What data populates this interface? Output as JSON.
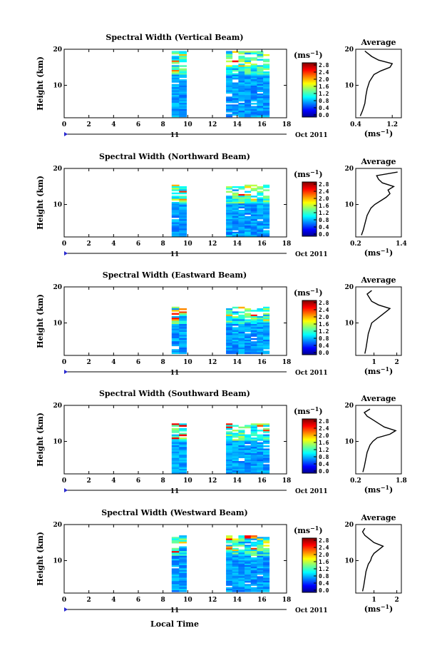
{
  "figure": {
    "xlabel": "Local Time",
    "colorbar_unit": "(ms",
    "colorbar_unit_sup": "−1",
    "date_day": "11",
    "date_label": "Oct 2011",
    "avg_title": "Average",
    "avg_xlabel": "(ms",
    "avg_xlabel_sup": "−1"
  },
  "chart_data": [
    {
      "type": "heatmap",
      "title": "Spectral Width (Vertical Beam)",
      "ylabel": "Height (km)",
      "xlim": [
        0,
        18
      ],
      "ylim": [
        1,
        20
      ],
      "xticks": [
        0,
        2,
        4,
        6,
        8,
        10,
        12,
        14,
        16,
        18
      ],
      "yticks": [
        10,
        20
      ],
      "data_intervals": [
        [
          8.7,
          9.9
        ],
        [
          13.1,
          16.6
        ]
      ],
      "data_height_range": [
        1.5,
        19.5
      ],
      "colorbar": {
        "ticks": [
          0.0,
          0.4,
          0.8,
          1.2,
          1.6,
          2.0,
          2.4,
          2.8
        ]
      },
      "average_profile": {
        "xlim": [
          0.4,
          1.4
        ],
        "xticks": [
          0.4,
          1.2
        ],
        "height": [
          1.5,
          3,
          5,
          7,
          9,
          11,
          12,
          13,
          14,
          15,
          16,
          17,
          18,
          19,
          19.5
        ],
        "value": [
          0.5,
          0.55,
          0.6,
          0.62,
          0.65,
          0.7,
          0.75,
          0.8,
          0.95,
          1.15,
          1.2,
          0.9,
          0.75,
          0.65,
          0.6
        ]
      }
    },
    {
      "type": "heatmap",
      "title": "Spectral Width (Northward Beam)",
      "ylabel": "Height (km)",
      "xlim": [
        0,
        18
      ],
      "ylim": [
        1,
        20
      ],
      "xticks": [
        0,
        2,
        4,
        6,
        8,
        10,
        12,
        14,
        16,
        18
      ],
      "yticks": [
        10,
        20
      ],
      "data_intervals": [
        [
          8.7,
          9.9
        ],
        [
          13.1,
          16.6
        ]
      ],
      "data_height_range": [
        1.5,
        15.5
      ],
      "colorbar": {
        "ticks": [
          0.0,
          0.4,
          0.8,
          1.2,
          1.6,
          2.0,
          2.4,
          2.8
        ]
      },
      "average_profile": {
        "xlim": [
          0.2,
          1.4
        ],
        "xticks": [
          0.2,
          1.4
        ],
        "height": [
          1.5,
          3,
          5,
          7,
          9,
          10,
          11,
          12,
          13,
          14,
          15,
          16,
          17,
          18,
          19
        ],
        "value": [
          0.35,
          0.4,
          0.45,
          0.5,
          0.6,
          0.7,
          0.85,
          1.0,
          1.1,
          1.05,
          1.2,
          0.9,
          0.8,
          0.75,
          1.3
        ]
      }
    },
    {
      "type": "heatmap",
      "title": "Spectral Width (Eastward Beam)",
      "ylabel": "Height (km)",
      "xlim": [
        0,
        18
      ],
      "ylim": [
        1,
        20
      ],
      "xticks": [
        0,
        2,
        4,
        6,
        8,
        10,
        12,
        14,
        16,
        18
      ],
      "yticks": [
        10,
        20
      ],
      "data_intervals": [
        [
          8.7,
          9.9
        ],
        [
          13.1,
          16.6
        ]
      ],
      "data_height_range": [
        1.5,
        14.5
      ],
      "colorbar": {
        "ticks": [
          0.0,
          0.4,
          0.8,
          1.2,
          1.6,
          2.0,
          2.4,
          2.8
        ]
      },
      "average_profile": {
        "xlim": [
          0.2,
          2.2
        ],
        "xticks": [
          1,
          2
        ],
        "height": [
          1.5,
          3,
          5,
          7,
          9,
          10,
          11,
          12,
          13,
          14,
          15,
          16,
          17,
          18,
          19
        ],
        "value": [
          0.6,
          0.65,
          0.7,
          0.75,
          0.85,
          0.9,
          1.1,
          1.3,
          1.5,
          1.7,
          1.2,
          0.9,
          0.8,
          0.7,
          0.9
        ]
      }
    },
    {
      "type": "heatmap",
      "title": "Spectral Width (Southward Beam)",
      "ylabel": "Height (km)",
      "xlim": [
        0,
        18
      ],
      "ylim": [
        1,
        20
      ],
      "xticks": [
        0,
        2,
        4,
        6,
        8,
        10,
        12,
        14,
        16,
        18
      ],
      "yticks": [
        10,
        20
      ],
      "data_intervals": [
        [
          8.7,
          9.9
        ],
        [
          13.1,
          16.6
        ]
      ],
      "data_height_range": [
        1.5,
        15.0
      ],
      "colorbar": {
        "ticks": [
          0.0,
          0.4,
          0.8,
          1.2,
          1.6,
          2.0,
          2.4,
          2.8
        ]
      },
      "average_profile": {
        "xlim": [
          0.2,
          1.8
        ],
        "xticks": [
          0.2,
          1.8
        ],
        "height": [
          1.5,
          3,
          5,
          7,
          9,
          10,
          11,
          12,
          13,
          14,
          15,
          16,
          17,
          18,
          19
        ],
        "value": [
          0.45,
          0.5,
          0.55,
          0.6,
          0.7,
          0.8,
          0.95,
          1.4,
          1.6,
          1.2,
          1.0,
          0.8,
          0.6,
          0.5,
          0.7
        ]
      }
    },
    {
      "type": "heatmap",
      "title": "Spectral Width (Westward Beam)",
      "ylabel": "Height (km)",
      "xlim": [
        0,
        18
      ],
      "ylim": [
        1,
        20
      ],
      "xticks": [
        0,
        2,
        4,
        6,
        8,
        10,
        12,
        14,
        16,
        18
      ],
      "yticks": [
        10,
        20
      ],
      "data_intervals": [
        [
          8.7,
          9.9
        ],
        [
          13.1,
          16.6
        ]
      ],
      "data_height_range": [
        1.5,
        17.0
      ],
      "colorbar": {
        "ticks": [
          0.0,
          0.4,
          0.8,
          1.2,
          1.6,
          2.0,
          2.4,
          2.8
        ]
      },
      "average_profile": {
        "xlim": [
          0.2,
          2.2
        ],
        "xticks": [
          1,
          2
        ],
        "height": [
          1.5,
          3,
          5,
          7,
          9,
          10,
          11,
          12,
          13,
          14,
          15,
          16,
          17,
          18,
          19
        ],
        "value": [
          0.5,
          0.55,
          0.6,
          0.65,
          0.75,
          0.85,
          0.9,
          1.0,
          1.2,
          1.4,
          1.0,
          0.8,
          0.6,
          0.5,
          0.6
        ]
      }
    }
  ]
}
